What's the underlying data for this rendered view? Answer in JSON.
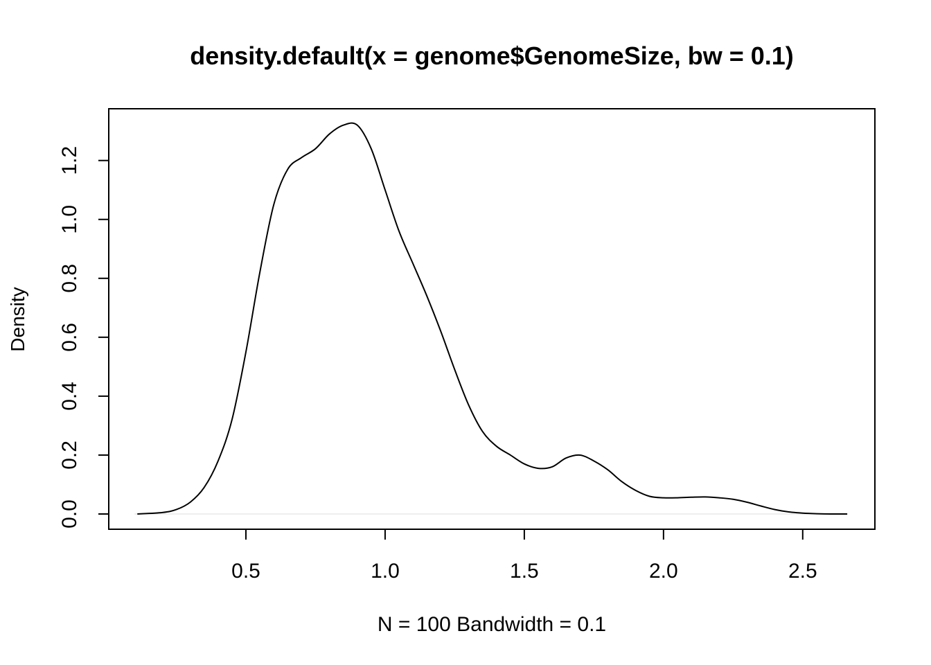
{
  "chart_data": {
    "type": "line",
    "title": "density.default(x = genome$GenomeSize, bw = 0.1)",
    "xlabel": "N = 100   Bandwidth = 0.1",
    "ylabel": "Density",
    "xlim": [
      0.1,
      2.66
    ],
    "ylim": [
      0.0,
      1.32
    ],
    "x_ticks": [
      "0.5",
      "1.0",
      "1.5",
      "2.0",
      "2.5"
    ],
    "y_ticks": [
      "0.0",
      "0.2",
      "0.4",
      "0.6",
      "0.8",
      "1.0",
      "1.2"
    ],
    "grid": false,
    "legend": "none",
    "zero_line": true,
    "series": [
      {
        "x": [
          0.11,
          0.2,
          0.25,
          0.3,
          0.35,
          0.4,
          0.45,
          0.5,
          0.55,
          0.6,
          0.65,
          0.7,
          0.75,
          0.8,
          0.85,
          0.9,
          0.95,
          1.0,
          1.05,
          1.1,
          1.15,
          1.2,
          1.25,
          1.3,
          1.35,
          1.4,
          1.45,
          1.5,
          1.55,
          1.6,
          1.65,
          1.7,
          1.75,
          1.8,
          1.85,
          1.9,
          1.95,
          2.0,
          2.05,
          2.1,
          2.15,
          2.2,
          2.25,
          2.3,
          2.35,
          2.4,
          2.45,
          2.5,
          2.55,
          2.6,
          2.66
        ],
        "values": [
          0.0,
          0.005,
          0.015,
          0.04,
          0.09,
          0.18,
          0.32,
          0.55,
          0.82,
          1.05,
          1.17,
          1.21,
          1.24,
          1.29,
          1.32,
          1.32,
          1.24,
          1.1,
          0.96,
          0.85,
          0.74,
          0.62,
          0.49,
          0.37,
          0.28,
          0.23,
          0.2,
          0.17,
          0.155,
          0.16,
          0.19,
          0.2,
          0.18,
          0.15,
          0.11,
          0.08,
          0.06,
          0.055,
          0.055,
          0.057,
          0.058,
          0.055,
          0.05,
          0.04,
          0.027,
          0.015,
          0.007,
          0.003,
          0.001,
          0.0,
          0.0
        ]
      }
    ]
  }
}
